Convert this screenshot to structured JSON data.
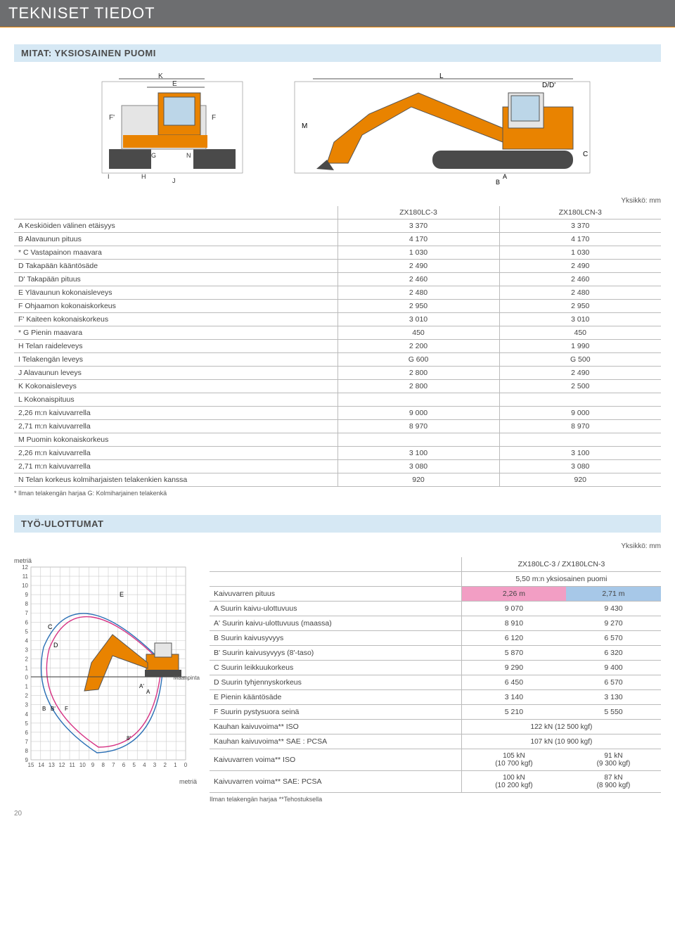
{
  "header": {
    "title": "TEKNISET TIEDOT"
  },
  "section1": {
    "title": "MITAT: YKSIOSAINEN PUOMI",
    "unit_note": "Yksikkö: mm",
    "col1": "ZX180LC-3",
    "col2": "ZX180LCN-3",
    "rows": [
      {
        "label": "A Keskiöiden välinen etäisyys",
        "v1": "3 370",
        "v2": "3 370",
        "indent": false
      },
      {
        "label": "B Alavaunun pituus",
        "v1": "4 170",
        "v2": "4 170",
        "indent": false
      },
      {
        "label": "* C Vastapainon maavara",
        "v1": "1 030",
        "v2": "1 030",
        "indent": false
      },
      {
        "label": "D Takapään kääntösäde",
        "v1": "2 490",
        "v2": "2 490",
        "indent": false
      },
      {
        "label": "D' Takapään pituus",
        "v1": "2 460",
        "v2": "2 460",
        "indent": false
      },
      {
        "label": "E Ylävaunun kokonaisleveys",
        "v1": "2 480",
        "v2": "2 480",
        "indent": false
      },
      {
        "label": "F Ohjaamon kokonaiskorkeus",
        "v1": "2 950",
        "v2": "2 950",
        "indent": false
      },
      {
        "label": "F' Kaiteen kokonaiskorkeus",
        "v1": "3 010",
        "v2": "3 010",
        "indent": false
      },
      {
        "label": "* G Pienin maavara",
        "v1": "450",
        "v2": "450",
        "indent": false
      },
      {
        "label": "H Telan raideleveys",
        "v1": "2 200",
        "v2": "1 990",
        "indent": false
      },
      {
        "label": "I  Telakengän leveys",
        "v1": "G 600",
        "v2": "G 500",
        "indent": false
      },
      {
        "label": "J Alavaunun leveys",
        "v1": "2 800",
        "v2": "2 490",
        "indent": false
      },
      {
        "label": "K Kokonaisleveys",
        "v1": "2 800",
        "v2": "2 500",
        "indent": false
      },
      {
        "label": "L Kokonaispituus",
        "v1": "",
        "v2": "",
        "indent": false
      },
      {
        "label": "2,26 m:n kaivuvarrella",
        "v1": "9 000",
        "v2": "9 000",
        "indent": true
      },
      {
        "label": "2,71 m:n kaivuvarrella",
        "v1": "8 970",
        "v2": "8 970",
        "indent": true
      },
      {
        "label": "M Puomin kokonaiskorkeus",
        "v1": "",
        "v2": "",
        "indent": false
      },
      {
        "label": "2,26 m:n kaivuvarrella",
        "v1": "3 100",
        "v2": "3 100",
        "indent": true
      },
      {
        "label": "2,71 m:n kaivuvarrella",
        "v1": "3 080",
        "v2": "3 080",
        "indent": true
      },
      {
        "label": "N Telan korkeus kolmiharjaisten telakenkien kanssa",
        "v1": "920",
        "v2": "920",
        "indent": false
      }
    ],
    "footnote": "* Ilman telakengän harjaa    G: Kolmiharjainen telakenkä"
  },
  "diagram1": {
    "front_labels": [
      "K",
      "E",
      "F'",
      "F",
      "G",
      "N",
      "I",
      "H",
      "J"
    ],
    "side_labels": [
      "L",
      "D/D'",
      "M",
      "A",
      "B",
      "C"
    ]
  },
  "section2": {
    "title": "TYÖ-ULOTTUMAT",
    "unit_note": "Yksikkö: mm",
    "model_header": "ZX180LC-3 / ZX180LCN-3",
    "boom_header": "5,50 m:n yksiosainen puomi",
    "arm_label": "Kaivuvarren pituus",
    "arm1": "2,26 m",
    "arm2": "2,71 m",
    "rows": [
      {
        "label": "A Suurin kaivu-ulottuvuus",
        "v1": "9 070",
        "v2": "9 430"
      },
      {
        "label": "A' Suurin kaivu-ulottuvuus (maassa)",
        "v1": "8 910",
        "v2": "9 270"
      },
      {
        "label": "B Suurin kaivusyvyys",
        "v1": "6 120",
        "v2": "6 570"
      },
      {
        "label": "B' Suurin kaivusyvyys (8'-taso)",
        "v1": "5 870",
        "v2": "6 320"
      },
      {
        "label": "C Suurin leikkuukorkeus",
        "v1": "9 290",
        "v2": "9 400"
      },
      {
        "label": "D Suurin tyhjennyskorkeus",
        "v1": "6 450",
        "v2": "6 570"
      },
      {
        "label": "E Pienin kääntösäde",
        "v1": "3 140",
        "v2": "3 130"
      },
      {
        "label": "F Suurin pystysuora seinä",
        "v1": "5 210",
        "v2": "5 550"
      }
    ],
    "force_rows": [
      {
        "label": "Kauhan kaivuvoima** ISO",
        "span": "122 kN (12 500 kgf)"
      },
      {
        "label": "Kauhan kaivuvoima** SAE : PCSA",
        "span": "107 kN (10 900 kgf)"
      }
    ],
    "force_rows2": [
      {
        "label": "Kaivuvarren voima** ISO",
        "v1": "105 kN\n(10 700 kgf)",
        "v2": "91 kN\n(9 300 kgf)"
      },
      {
        "label": "Kaivuvarren voima** SAE: PCSA",
        "v1": "100 kN\n(10 200 kgf)",
        "v2": "87 kN\n(8 900 kgf)"
      }
    ],
    "footnote": "Ilman telakengän harjaa   **Tehostuksella",
    "diag_label_top": "metriä",
    "diag_label_bottom": "metriä",
    "diag_label_ground": "Maanpinta",
    "y_ticks": [
      "12",
      "11",
      "10",
      "9",
      "8",
      "7",
      "6",
      "5",
      "4",
      "3",
      "2",
      "1",
      "0",
      "1",
      "2",
      "3",
      "4",
      "5",
      "6",
      "7",
      "8",
      "9"
    ],
    "x_ticks": [
      "15",
      "14",
      "13",
      "12",
      "11",
      "10",
      "9",
      "8",
      "7",
      "6",
      "5",
      "4",
      "3",
      "2",
      "1",
      "0"
    ],
    "curve_labels": [
      "E",
      "C",
      "D",
      "A'",
      "A",
      "B",
      "B'",
      "F",
      "8'"
    ]
  },
  "pagenum": "20",
  "colors": {
    "header_bg": "#6d6e70",
    "section_bg": "#d6e8f4",
    "orange": "#e98300",
    "pink": "#f29ec4",
    "blue": "#a7c8e8",
    "excavator_body": "#e98300",
    "excavator_dark": "#4a4a4a"
  }
}
